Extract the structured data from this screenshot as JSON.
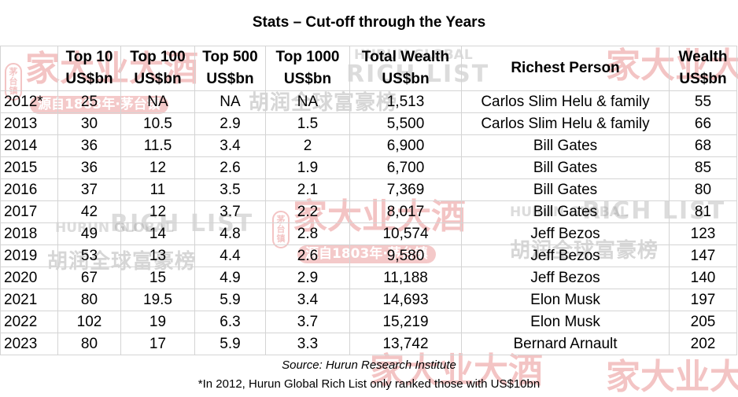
{
  "title": "Stats – Cut-off through the Years",
  "columns": [
    {
      "line1": "",
      "line2": ""
    },
    {
      "line1": "Top 10",
      "line2": "US$bn"
    },
    {
      "line1": "Top 100",
      "line2": "US$bn"
    },
    {
      "line1": "Top 500",
      "line2": "US$bn"
    },
    {
      "line1": "Top 1000",
      "line2": "US$bn"
    },
    {
      "line1": "Total Wealth",
      "line2": "US$bn"
    },
    {
      "line1": "Richest Person",
      "line2": ""
    },
    {
      "line1": "Wealth",
      "line2": "US$bn"
    }
  ],
  "rows": [
    [
      "2012*",
      "25",
      "NA",
      "NA",
      "NA",
      "1,513",
      "Carlos Slim Helu & family",
      "55"
    ],
    [
      "2013",
      "30",
      "10.5",
      "2.9",
      "1.5",
      "5,500",
      "Carlos Slim Helu & family",
      "66"
    ],
    [
      "2014",
      "36",
      "11.5",
      "3.4",
      "2",
      "6,900",
      "Bill Gates",
      "68"
    ],
    [
      "2015",
      "36",
      "12",
      "2.6",
      "1.9",
      "6,700",
      "Bill Gates",
      "85"
    ],
    [
      "2016",
      "37",
      "11",
      "3.5",
      "2.1",
      "7,369",
      "Bill Gates",
      "80"
    ],
    [
      "2017",
      "42",
      "12",
      "3.7",
      "2.2",
      "8,017",
      "Bill Gates",
      "81"
    ],
    [
      "2018",
      "49",
      "14",
      "4.8",
      "2.8",
      "10,574",
      "Jeff Bezos",
      "123"
    ],
    [
      "2019",
      "53",
      "13",
      "4.4",
      "2.6",
      "9,580",
      "Jeff Bezos",
      "147"
    ],
    [
      "2020",
      "67",
      "15",
      "4.9",
      "2.9",
      "11,188",
      "Jeff Bezos",
      "140"
    ],
    [
      "2021",
      "80",
      "19.5",
      "5.9",
      "3.4",
      "14,693",
      "Elon Musk",
      "197"
    ],
    [
      "2022",
      "102",
      "19",
      "6.3",
      "3.7",
      "15,219",
      "Elon Musk",
      "205"
    ],
    [
      "2023",
      "80",
      "17",
      "5.9",
      "3.3",
      "13,742",
      "Bernard Arnault",
      "202"
    ]
  ],
  "source": "Source: Hurun Research Institute",
  "footnote": "*In 2012, Hurun Global Rich List only ranked those with US$10bn",
  "watermarks": {
    "brand": "家大业大酒",
    "brand_sub": "源自1803年·茅台镇",
    "seal": "茅台镇",
    "hurun_global": "HURUN GLOBAL",
    "rich_list": "RICH LIST",
    "hurun_cn": "胡润全球富豪榜"
  },
  "colors": {
    "grid": "#d4d4d4",
    "watermark_red": "#d63c3c"
  }
}
